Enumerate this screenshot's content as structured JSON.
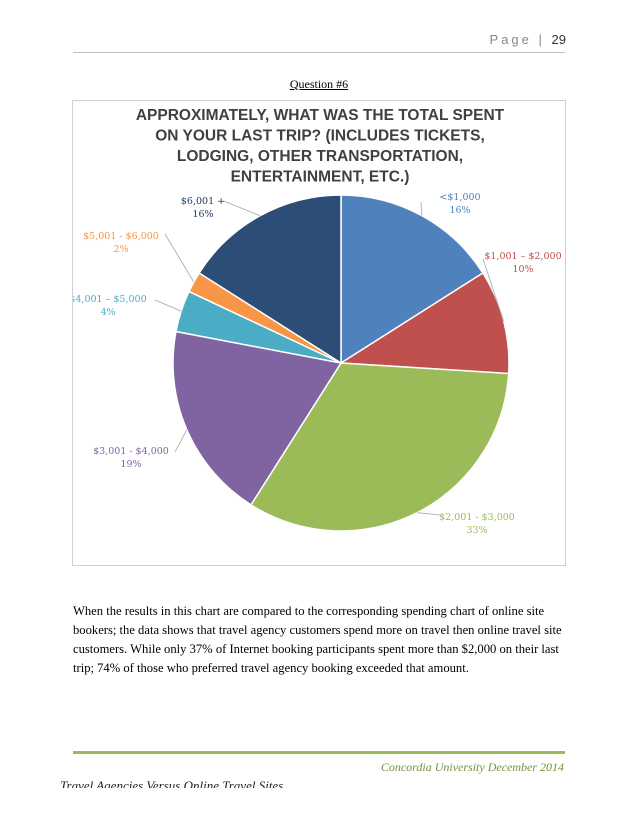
{
  "header": {
    "page_label": "Page",
    "page_number": "29"
  },
  "question_heading": "Question #6",
  "chart_data": {
    "type": "pie",
    "title_lines": [
      "APPROXIMATELY, WHAT WAS THE TOTAL SPENT",
      "ON YOUR LAST TRIP? (INCLUDES TICKETS,",
      "LODGING, OTHER TRANSPORTATION,",
      "ENTERTAINMENT, ETC.)"
    ],
    "slices": [
      {
        "label": "<$1,000",
        "value": 16,
        "display": "16%",
        "color": "#4f81bd"
      },
      {
        "label": "$1,001 – $2,000",
        "value": 10,
        "display": "10%",
        "color": "#c0504d"
      },
      {
        "label": "$2,001 - $3,000",
        "value": 33,
        "display": "33%",
        "color": "#9bbb59"
      },
      {
        "label": "$3,001 - $4,000",
        "value": 19,
        "display": "19%",
        "color": "#8064a2"
      },
      {
        "label": "$4,001 – $5,000",
        "value": 4,
        "display": "4%",
        "color": "#4bacc6"
      },
      {
        "label": "$5,001 - $6,000",
        "value": 2,
        "display": "2%",
        "color": "#f79646"
      },
      {
        "label": "$6,001 +",
        "value": 16,
        "display": "16%",
        "color": "#2c4d75"
      }
    ],
    "label_colors": [
      "#4f81bd",
      "#c0504d",
      "#9bbb59",
      "#8064a2",
      "#4bacc6",
      "#f79646",
      "#1f3864"
    ]
  },
  "body_text": "When the results in this chart are compared to the corresponding spending chart of online site bookers; the data shows that travel agency customers spend more on travel then online travel site customers. While only 37% of Internet booking participants spent more than $2,000 on their last trip; 74% of those who preferred travel agency booking exceeded that amount.",
  "footer": {
    "right": "Concordia University December 2014",
    "left": "Travel Agencies Versus Online Travel Sites"
  }
}
